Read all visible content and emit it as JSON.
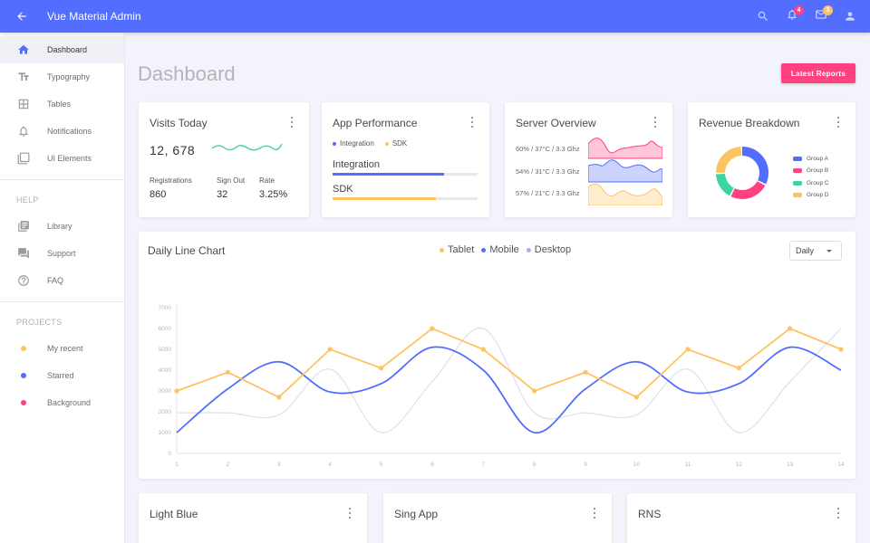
{
  "app": {
    "title": "Vue Material Admin"
  },
  "topbar": {
    "notifications_badge": "4",
    "messages_badge": "3"
  },
  "sidebar": {
    "items": [
      {
        "label": "Dashboard",
        "icon": "home-icon"
      },
      {
        "label": "Typography",
        "icon": "typography-icon"
      },
      {
        "label": "Tables",
        "icon": "table-icon"
      },
      {
        "label": "Notifications",
        "icon": "bell-icon"
      },
      {
        "label": "UI Elements",
        "icon": "ui-elements-icon"
      }
    ],
    "help_title": "HELP",
    "help_items": [
      {
        "label": "Library",
        "icon": "library-icon"
      },
      {
        "label": "Support",
        "icon": "support-icon"
      },
      {
        "label": "FAQ",
        "icon": "help-circle-icon"
      }
    ],
    "projects_title": "PROJECTS",
    "projects": [
      {
        "label": "My recent",
        "color": "#ffc260"
      },
      {
        "label": "Starred",
        "color": "#536dfe"
      },
      {
        "label": "Background",
        "color": "#ff4081"
      }
    ]
  },
  "page": {
    "title": "Dashboard",
    "latest_reports": "Latest Reports"
  },
  "visits": {
    "title": "Visits Today",
    "value": "12, 678",
    "stats": [
      {
        "label": "Registrations",
        "value": "860"
      },
      {
        "label": "Sign Out",
        "value": "32"
      },
      {
        "label": "Rate",
        "value": "3.25%"
      }
    ]
  },
  "performance": {
    "title": "App Performance",
    "legend": [
      {
        "label": "Integration",
        "color": "#536dfe"
      },
      {
        "label": "SDK",
        "color": "#ffc260"
      }
    ],
    "bars": [
      {
        "label": "Integration",
        "value": 0.77,
        "color": "#536dfe"
      },
      {
        "label": "SDK",
        "value": 0.71,
        "color": "#ffc260"
      }
    ]
  },
  "server": {
    "title": "Server Overview",
    "rows": [
      {
        "label": "60% / 37°C / 3.3 Ghz",
        "color": "#ff4081"
      },
      {
        "label": "54% / 31°C / 3.3 Ghz",
        "color": "#536dfe"
      },
      {
        "label": "57% / 21°C / 3.3 Ghz",
        "color": "#ffc260"
      }
    ]
  },
  "revenue": {
    "title": "Revenue Breakdown",
    "groups": [
      {
        "label": "Group A",
        "color": "#536dfe",
        "value": 0.33
      },
      {
        "label": "Group B",
        "color": "#ff4081",
        "value": 0.25
      },
      {
        "label": "Group C",
        "color": "#3cd4a0",
        "value": 0.17
      },
      {
        "label": "Group D",
        "color": "#ffc260",
        "value": 0.25
      }
    ]
  },
  "daily": {
    "title": "Daily Line Chart",
    "select_value": "Daily"
  },
  "chart_data": {
    "type": "line",
    "x": [
      1,
      2,
      3,
      4,
      5,
      6,
      7,
      8,
      9,
      10,
      11,
      12,
      13,
      14
    ],
    "ylim": [
      0,
      7000
    ],
    "yticks": [
      0,
      1000,
      2000,
      3000,
      4000,
      5000,
      6000,
      7000
    ],
    "series": [
      {
        "name": "Tablet",
        "color": "#ffc260",
        "values": [
          3000,
          3900,
          2700,
          5000,
          4100,
          6000,
          5000,
          3000,
          3900,
          2700,
          5000,
          4100,
          6000,
          5000
        ]
      },
      {
        "name": "Mobile",
        "color": "#536dfe",
        "values": [
          1000,
          3100,
          4400,
          2950,
          3350,
          5100,
          4000,
          1000,
          3100,
          4400,
          2950,
          3350,
          5100,
          4000
        ]
      },
      {
        "name": "Desktop",
        "color": "#a3b0fb",
        "values": [
          1950,
          1950,
          1850,
          4050,
          1000,
          3450,
          6000,
          1950,
          1950,
          1850,
          4050,
          1000,
          3450,
          6000
        ]
      }
    ]
  },
  "bottom_cards": [
    {
      "title": "Light Blue"
    },
    {
      "title": "Sing App"
    },
    {
      "title": "RNS"
    }
  ]
}
